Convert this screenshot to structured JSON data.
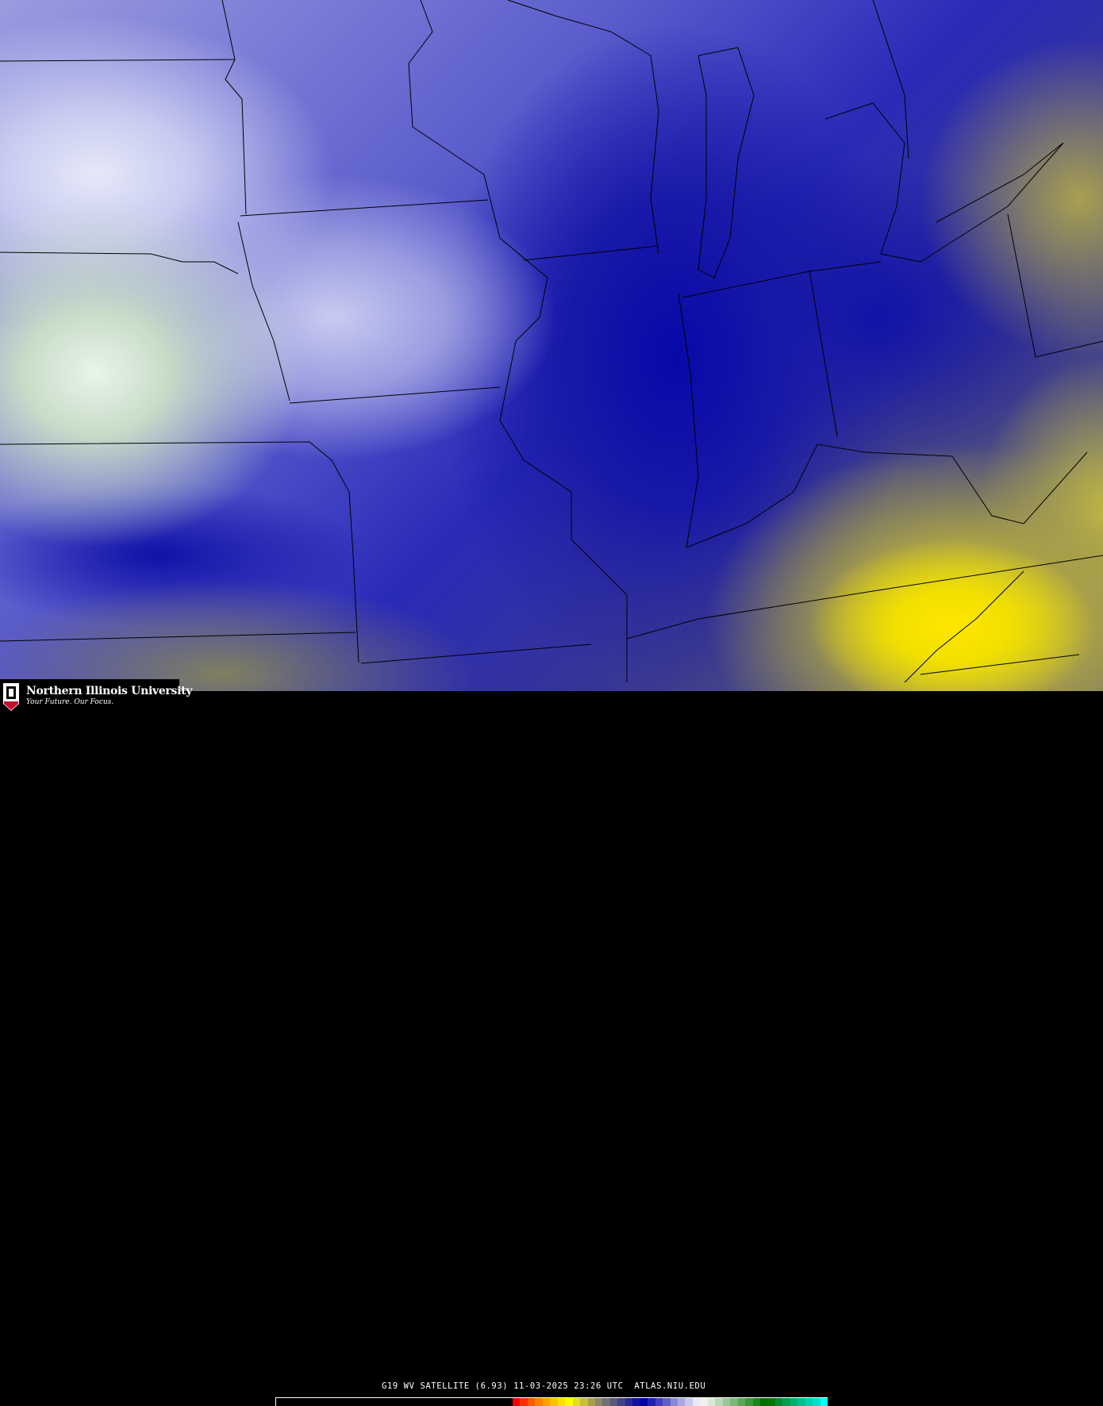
{
  "logo": {
    "name": "Northern Illinois University",
    "tagline": "Your Future. Our Focus.",
    "badge": "NIU",
    "brand_color": "#c8102e"
  },
  "caption": "G19 WV SATELLITE (6.93) 11-03-2025 23:26 UTC  ATLAS.NIU.EDU",
  "colorbar": {
    "colors": [
      "#ff0000",
      "#ff3000",
      "#ff5a00",
      "#ff8000",
      "#ffa000",
      "#ffc000",
      "#ffe000",
      "#ffff00",
      "#e0e020",
      "#c8c030",
      "#a8a048",
      "#888868",
      "#707070",
      "#585878",
      "#404088",
      "#282898",
      "#1010a0",
      "#0000a8",
      "#2020b0",
      "#4040c0",
      "#6060c8",
      "#8888d8",
      "#a8a8e0",
      "#c8c8ec",
      "#e8e8f8",
      "#f0f0f0",
      "#d8e8d8",
      "#b8d8b8",
      "#98c898",
      "#78b878",
      "#58a858",
      "#389838",
      "#188818",
      "#007000",
      "#007800",
      "#008c30",
      "#00a050",
      "#00b070",
      "#00c090",
      "#00d0b0",
      "#00e0d0",
      "#00ffff"
    ]
  }
}
